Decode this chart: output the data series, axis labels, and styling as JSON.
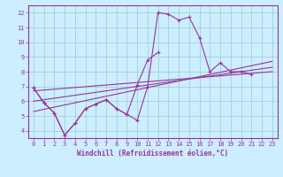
{
  "xlabel": "Windchill (Refroidissement éolien,°C)",
  "background_color": "#cceeff",
  "line_color": "#993399",
  "grid_color": "#99cccc",
  "xlim": [
    -0.5,
    23.5
  ],
  "ylim": [
    3.5,
    12.5
  ],
  "xticks": [
    0,
    1,
    2,
    3,
    4,
    5,
    6,
    7,
    8,
    9,
    10,
    11,
    12,
    13,
    14,
    15,
    16,
    17,
    18,
    19,
    20,
    21,
    22,
    23
  ],
  "yticks": [
    4,
    5,
    6,
    7,
    8,
    9,
    10,
    11,
    12
  ],
  "main_x": [
    0,
    1,
    2,
    3,
    4,
    5,
    6,
    7,
    8,
    9,
    10,
    11,
    12,
    13,
    14,
    15,
    16,
    17,
    18,
    19,
    20,
    21
  ],
  "main_y": [
    6.9,
    5.9,
    5.2,
    3.7,
    4.5,
    5.5,
    5.8,
    6.1,
    5.5,
    5.1,
    4.7,
    7.0,
    12.0,
    11.9,
    11.5,
    11.7,
    10.3,
    8.0,
    8.6,
    8.0,
    8.0,
    7.8
  ],
  "sec_x": [
    0,
    1,
    2,
    3,
    4,
    5,
    6,
    7,
    8,
    9,
    10,
    11,
    12
  ],
  "sec_y": [
    6.9,
    5.9,
    5.2,
    3.7,
    4.5,
    5.5,
    5.8,
    6.1,
    5.5,
    5.1,
    7.1,
    8.8,
    9.3
  ],
  "trend1_x": [
    0,
    23
  ],
  "trend1_y": [
    6.7,
    8.0
  ],
  "trend2_x": [
    0,
    23
  ],
  "trend2_y": [
    6.0,
    8.3
  ],
  "trend3_x": [
    0,
    23
  ],
  "trend3_y": [
    5.3,
    8.7
  ]
}
